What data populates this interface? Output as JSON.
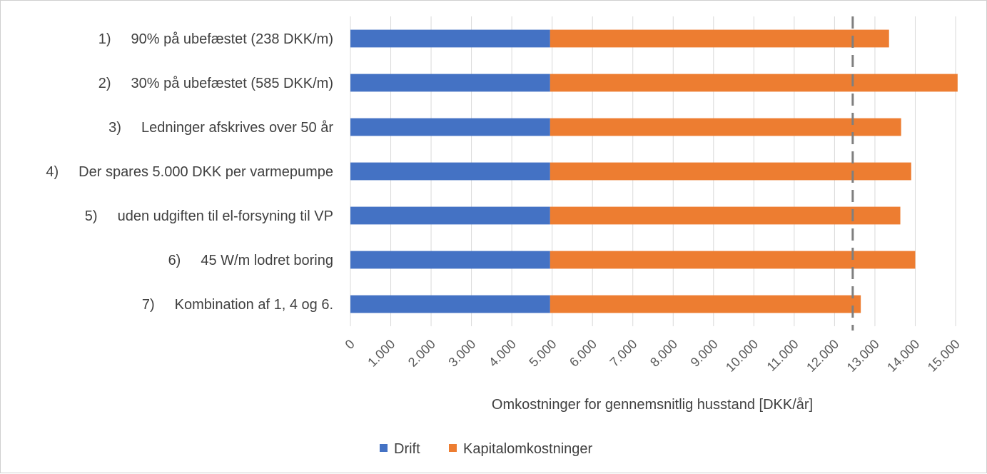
{
  "chart_data": {
    "type": "bar",
    "orientation": "horizontal",
    "stacked": true,
    "title": "",
    "xlabel": "Omkostninger for gennemsnitlig husstand [DKK/år]",
    "ylabel": "",
    "xlim": [
      0,
      15000
    ],
    "tick_values": [
      0,
      1000,
      2000,
      3000,
      4000,
      5000,
      6000,
      7000,
      8000,
      9000,
      10000,
      11000,
      12000,
      13000,
      14000,
      15000
    ],
    "tick_labels": [
      "0",
      "1.000",
      "2.000",
      "3.000",
      "4.000",
      "5.000",
      "6.000",
      "7.000",
      "8.000",
      "9.000",
      "10.000",
      "11.000",
      "12.000",
      "13.000",
      "14.000",
      "15.000"
    ],
    "categories": [
      {
        "num": "1)",
        "text": "90% på ubefæstet (238 DKK/m)"
      },
      {
        "num": "2)",
        "text": "30% på ubefæstet (585 DKK/m)"
      },
      {
        "num": "3)",
        "text": "Ledninger afskrives over 50 år"
      },
      {
        "num": "4)",
        "text": "Der spares 5.000 DKK per varmepumpe"
      },
      {
        "num": "5)",
        "text": "uden udgiften til el-forsyning til VP"
      },
      {
        "num": "6)",
        "text": "45 W/m lodret boring"
      },
      {
        "num": "7)",
        "text": "Kombination af 1, 4 og 6."
      }
    ],
    "series": [
      {
        "name": "Drift",
        "color": "#4472C4",
        "values": [
          4950,
          4950,
          4950,
          4950,
          4950,
          4950,
          4950
        ]
      },
      {
        "name": "Kapitalomkostninger",
        "color": "#ED7D31",
        "values": [
          8400,
          10100,
          8700,
          8950,
          8680,
          9050,
          7700
        ]
      }
    ],
    "reference_line": {
      "value": 12450,
      "style": "dashed",
      "color": "#7F7F7F"
    },
    "legend_position": "bottom-center",
    "grid": {
      "vertical": true,
      "color": "#D9D9D9"
    }
  }
}
